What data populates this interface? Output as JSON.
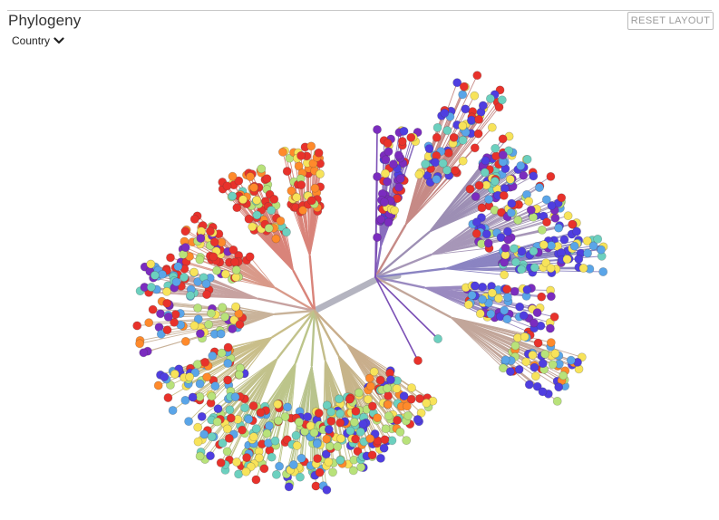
{
  "panel": {
    "title": "Phylogeny",
    "color_by_label": "Country",
    "reset_label": "RESET LAYOUT"
  },
  "icons": {
    "dropdown": "chevron-down-icon"
  },
  "palette": [
    "#e8322b",
    "#f7e35a",
    "#b8e27a",
    "#6cd0bf",
    "#5aa5e8",
    "#4f3ee0",
    "#7b2cbf",
    "#ff8a2b"
  ]
}
